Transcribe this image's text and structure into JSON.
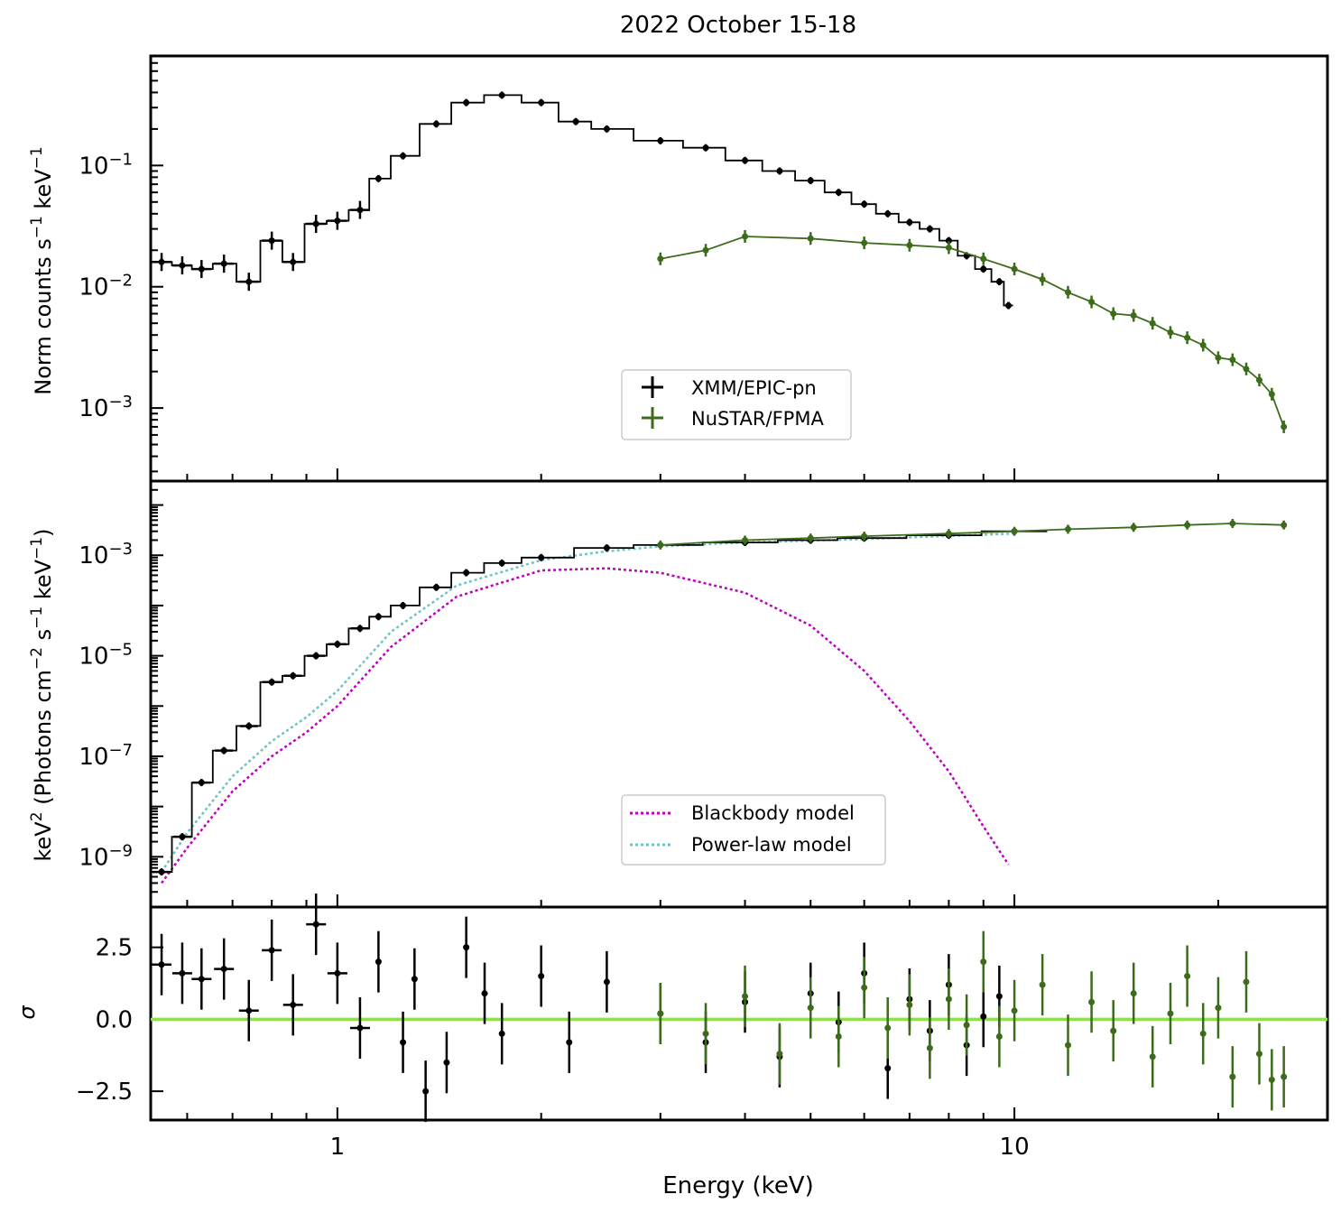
{
  "title": "2022 October 15-18",
  "xlabel": "Energy (keV)",
  "colors": {
    "xmm": "#000000",
    "nustar": "#3d6b1c",
    "blackbody": "#c000c0",
    "powerlaw": "#6ec3c3",
    "zero": "#8fe04a"
  },
  "chart_data": [
    {
      "type": "scatter",
      "panel": "top",
      "ylabel": "Norm counts s^-1 keV^-1",
      "xscale": "log",
      "yscale": "log",
      "xlim": [
        0.53,
        29
      ],
      "ylim": [
        0.00025,
        0.8
      ],
      "x_ticklabels": [
        "1",
        "10"
      ],
      "y_ticklabels": [
        "10^-3",
        "10^-2",
        "10^-1"
      ],
      "legend": {
        "placement": "lower-center",
        "entries": [
          "XMM/EPIC-pn",
          "NuSTAR/FPMA"
        ]
      },
      "series": [
        {
          "name": "XMM/EPIC-pn",
          "x": [
            0.55,
            0.59,
            0.63,
            0.68,
            0.74,
            0.8,
            0.86,
            0.93,
            1.0,
            1.08,
            1.15,
            1.25,
            1.4,
            1.55,
            1.75,
            2.0,
            2.25,
            2.5,
            3.0,
            3.5,
            4.0,
            4.5,
            5.0,
            5.5,
            6.0,
            6.5,
            7.0,
            7.5,
            8.0,
            8.5,
            9.0,
            9.5,
            9.8
          ],
          "y": [
            0.016,
            0.015,
            0.014,
            0.0155,
            0.011,
            0.024,
            0.016,
            0.033,
            0.035,
            0.043,
            0.078,
            0.12,
            0.22,
            0.33,
            0.38,
            0.33,
            0.23,
            0.2,
            0.16,
            0.14,
            0.11,
            0.09,
            0.075,
            0.06,
            0.048,
            0.04,
            0.034,
            0.03,
            0.024,
            0.018,
            0.014,
            0.011,
            0.007
          ]
        },
        {
          "name": "NuSTAR/FPMA",
          "x": [
            3.0,
            3.5,
            4.0,
            5.0,
            6.0,
            7.0,
            8.0,
            9.0,
            10.0,
            11.0,
            12.0,
            13.0,
            14.0,
            15.0,
            16.0,
            17.0,
            18.0,
            19.0,
            20.0,
            21.0,
            22.0,
            23.0,
            24.0,
            25.0
          ],
          "y": [
            0.017,
            0.02,
            0.026,
            0.025,
            0.023,
            0.022,
            0.021,
            0.017,
            0.014,
            0.0115,
            0.009,
            0.0075,
            0.006,
            0.0058,
            0.005,
            0.0042,
            0.0038,
            0.0033,
            0.0026,
            0.0025,
            0.0021,
            0.0017,
            0.0013,
            0.0007
          ]
        }
      ]
    },
    {
      "type": "line",
      "panel": "middle",
      "ylabel": "keV^2 (Photons cm^-2 s^-1 keV^-1)",
      "xscale": "log",
      "yscale": "log",
      "xlim": [
        0.53,
        29
      ],
      "ylim": [
        1e-10,
        0.03
      ],
      "x_ticklabels": [
        "1",
        "10"
      ],
      "y_ticklabels": [
        "10^-9",
        "10^-7",
        "10^-5",
        "10^-3"
      ],
      "legend": {
        "placement": "lower-center",
        "entries": [
          "Blackbody model",
          "Power-law model"
        ]
      },
      "series": [
        {
          "name": "XMM/EPIC-pn",
          "x": [
            0.55,
            0.59,
            0.63,
            0.68,
            0.74,
            0.8,
            0.86,
            0.93,
            1.0,
            1.08,
            1.15,
            1.25,
            1.4,
            1.55,
            1.75,
            2.0,
            2.5,
            3.0,
            4.0,
            5.0,
            6.0,
            8.0,
            10.0
          ],
          "y": [
            5e-10,
            2.5e-09,
            3e-08,
            1.3e-07,
            4e-07,
            3e-06,
            4e-06,
            1e-05,
            1.7e-05,
            3.5e-05,
            6e-05,
            0.0001,
            0.00023,
            0.00045,
            0.0007,
            0.0009,
            0.0014,
            0.0016,
            0.0018,
            0.002,
            0.0022,
            0.0025,
            0.003
          ]
        },
        {
          "name": "NuSTAR/FPMA",
          "x": [
            3.0,
            4.0,
            5.0,
            6.0,
            8.0,
            10.0,
            12.0,
            15.0,
            18.0,
            21.0,
            25.0
          ],
          "y": [
            0.0016,
            0.002,
            0.0022,
            0.0024,
            0.0027,
            0.003,
            0.0033,
            0.0036,
            0.004,
            0.0043,
            0.004
          ]
        },
        {
          "name": "Blackbody model",
          "x": [
            0.55,
            0.6,
            0.7,
            0.8,
            0.9,
            1.0,
            1.2,
            1.5,
            2.0,
            2.5,
            3.0,
            4.0,
            5.0,
            6.0,
            7.0,
            8.0,
            9.0,
            9.8
          ],
          "y": [
            3e-10,
            1.5e-09,
            2e-08,
            1e-07,
            3e-07,
            1e-06,
            1.5e-05,
            0.00015,
            0.0005,
            0.00055,
            0.00045,
            0.00018,
            4e-05,
            5e-06,
            5e-07,
            5e-08,
            4e-09,
            7e-10
          ]
        },
        {
          "name": "Power-law model",
          "x": [
            0.55,
            0.6,
            0.7,
            0.8,
            0.9,
            1.0,
            1.2,
            1.5,
            2.0,
            2.5,
            3.0,
            4.0,
            6.0,
            10.0
          ],
          "y": [
            5e-10,
            3e-09,
            4e-08,
            2e-07,
            6e-07,
            2e-06,
            3e-05,
            0.00025,
            0.0008,
            0.0012,
            0.0015,
            0.0018,
            0.0021,
            0.0027
          ]
        }
      ]
    },
    {
      "type": "scatter",
      "panel": "bottom",
      "ylabel": "σ",
      "xscale": "log",
      "yscale": "linear",
      "xlim": [
        0.53,
        29
      ],
      "ylim": [
        -3.5,
        3.9
      ],
      "x_ticklabels": [
        "1",
        "10"
      ],
      "y_ticklabels": [
        "−2.5",
        "0.0",
        "2.5"
      ],
      "series": [
        {
          "name": "XMM/EPIC-pn",
          "x": [
            0.55,
            0.59,
            0.63,
            0.68,
            0.74,
            0.8,
            0.86,
            0.93,
            1.0,
            1.08,
            1.15,
            1.25,
            1.3,
            1.35,
            1.45,
            1.55,
            1.65,
            1.75,
            2.0,
            2.2,
            2.5,
            3.0,
            3.5,
            4.0,
            4.5,
            5.0,
            5.5,
            6.0,
            6.5,
            7.0,
            7.5,
            8.0,
            8.5,
            9.0,
            9.5
          ],
          "y": [
            1.9,
            1.6,
            1.4,
            1.75,
            0.3,
            2.4,
            0.5,
            3.3,
            1.6,
            -0.3,
            2.0,
            -0.8,
            1.4,
            -2.5,
            -1.5,
            2.5,
            0.9,
            -0.5,
            1.5,
            -0.8,
            1.3,
            0.2,
            -0.8,
            0.6,
            -1.3,
            0.9,
            -0.1,
            1.6,
            -1.7,
            0.7,
            -0.4,
            1.2,
            -0.9,
            0.1,
            0.8
          ]
        },
        {
          "name": "NuSTAR/FPMA",
          "x": [
            3.0,
            3.5,
            4.0,
            4.5,
            5.0,
            5.5,
            6.0,
            6.5,
            7.0,
            7.5,
            8.0,
            8.5,
            9.0,
            9.5,
            10.0,
            11.0,
            12.0,
            13.0,
            14.0,
            15.0,
            16.0,
            17.0,
            18.0,
            19.0,
            20.0,
            21.0,
            22.0,
            23.0,
            24.0,
            25.0
          ],
          "y": [
            0.2,
            -0.5,
            0.8,
            -1.2,
            0.4,
            -0.6,
            1.1,
            -0.3,
            0.5,
            -1.0,
            0.7,
            -0.2,
            2.0,
            -0.6,
            0.3,
            1.2,
            -0.9,
            0.6,
            -0.4,
            0.9,
            -1.3,
            0.2,
            1.5,
            -0.5,
            0.4,
            -2.0,
            1.3,
            -1.2,
            -2.1,
            -2.0
          ]
        }
      ]
    }
  ]
}
